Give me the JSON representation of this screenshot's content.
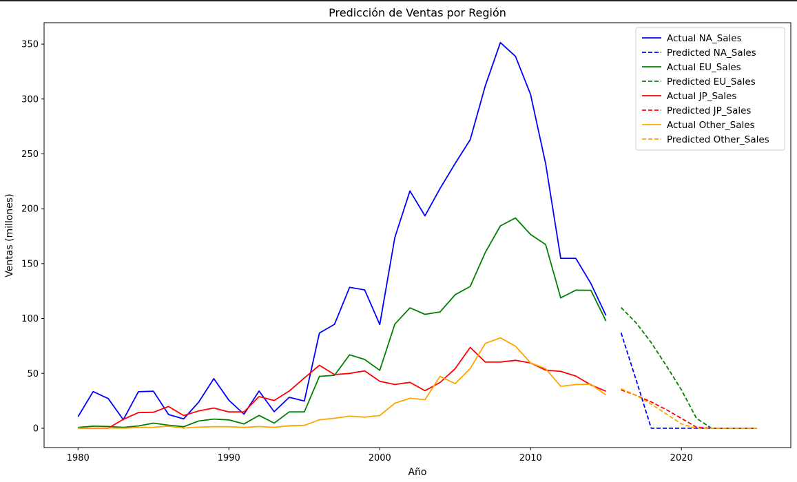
{
  "chart_data": {
    "type": "line",
    "title": "Predicción de Ventas por Región",
    "xlabel": "Año",
    "ylabel": "Ventas (millones)",
    "xlim": [
      1977.75,
      2027.25
    ],
    "ylim": [
      -17.6,
      369.5
    ],
    "xticks": [
      1980,
      1990,
      2000,
      2010,
      2020
    ],
    "yticks": [
      0,
      50,
      100,
      150,
      200,
      250,
      300,
      350
    ],
    "grid": false,
    "legend_position": "top-right",
    "series": [
      {
        "name": "Actual NA_Sales",
        "color": "#0000ff",
        "dashed": false,
        "x": [
          1980,
          1981,
          1982,
          1983,
          1984,
          1985,
          1986,
          1987,
          1988,
          1989,
          1990,
          1991,
          1992,
          1993,
          1994,
          1995,
          1996,
          1997,
          1998,
          1999,
          2000,
          2001,
          2002,
          2003,
          2004,
          2005,
          2006,
          2007,
          2008,
          2009,
          2010,
          2011,
          2012,
          2013,
          2014,
          2015
        ],
        "y": [
          10.6,
          33.4,
          27.1,
          7.8,
          33.3,
          33.7,
          12.5,
          8.5,
          23.9,
          45.2,
          25.5,
          12.8,
          33.9,
          15.1,
          28.2,
          24.8,
          86.8,
          94.7,
          128.4,
          126.1,
          94.5,
          173.8,
          216.2,
          193.6,
          218.4,
          241.2,
          262.9,
          312.0,
          351.4,
          338.9,
          304.2,
          241.1,
          154.9,
          154.8,
          131.9,
          102.8
        ]
      },
      {
        "name": "Predicted NA_Sales",
        "color": "#0000ff",
        "dashed": true,
        "x": [
          2016,
          2017,
          2018,
          2019,
          2020,
          2021,
          2022,
          2023,
          2024,
          2025
        ],
        "y": [
          87,
          44,
          0,
          0,
          0,
          0,
          0,
          0,
          0,
          0
        ]
      },
      {
        "name": "Actual EU_Sales",
        "color": "#008000",
        "dashed": false,
        "x": [
          1980,
          1981,
          1982,
          1983,
          1984,
          1985,
          1986,
          1987,
          1988,
          1989,
          1990,
          1991,
          1992,
          1993,
          1994,
          1995,
          1996,
          1997,
          1998,
          1999,
          2000,
          2001,
          2002,
          2003,
          2004,
          2005,
          2006,
          2007,
          2008,
          2009,
          2010,
          2011,
          2012,
          2013,
          2014,
          2015
        ],
        "y": [
          0.7,
          1.9,
          1.6,
          0.8,
          2.1,
          4.7,
          2.8,
          1.4,
          6.6,
          8.4,
          7.6,
          3.9,
          11.7,
          4.7,
          14.9,
          14.9,
          47.3,
          48.3,
          66.9,
          62.7,
          52.8,
          94.9,
          109.7,
          103.8,
          106.0,
          121.6,
          129.2,
          160.2,
          184.4,
          191.6,
          176.6,
          167.4,
          118.8,
          125.8,
          125.7,
          97.7
        ]
      },
      {
        "name": "Predicted EU_Sales",
        "color": "#008000",
        "dashed": true,
        "x": [
          2016,
          2017,
          2018,
          2019,
          2020,
          2021,
          2022,
          2023,
          2024,
          2025
        ],
        "y": [
          110,
          96,
          78,
          57,
          35,
          9,
          0,
          0,
          0,
          0
        ]
      },
      {
        "name": "Actual JP_Sales",
        "color": "#ff0000",
        "dashed": false,
        "x": [
          1980,
          1981,
          1982,
          1983,
          1984,
          1985,
          1986,
          1987,
          1988,
          1989,
          1990,
          1991,
          1992,
          1993,
          1994,
          1995,
          1996,
          1997,
          1998,
          1999,
          2000,
          2001,
          2002,
          2003,
          2004,
          2005,
          2006,
          2007,
          2008,
          2009,
          2010,
          2011,
          2012,
          2013,
          2014,
          2015
        ],
        "y": [
          0,
          0,
          0,
          8.1,
          14.3,
          14.6,
          19.8,
          11.6,
          15.8,
          18.4,
          14.9,
          14.9,
          28.9,
          25.3,
          33.9,
          45.8,
          57.4,
          48.9,
          50.0,
          52.3,
          42.8,
          39.9,
          41.8,
          34.2,
          41.7,
          54.3,
          73.7,
          60.3,
          60.3,
          61.9,
          59.5,
          53.0,
          51.8,
          47.6,
          39.5,
          33.7
        ]
      },
      {
        "name": "Predicted JP_Sales",
        "color": "#ff0000",
        "dashed": true,
        "x": [
          2016,
          2017,
          2018,
          2019,
          2020,
          2021,
          2022,
          2023,
          2024,
          2025
        ],
        "y": [
          35,
          30,
          24,
          17,
          9,
          1,
          0,
          0,
          0,
          0
        ]
      },
      {
        "name": "Actual Other_Sales",
        "color": "#ffa500",
        "dashed": false,
        "x": [
          1980,
          1981,
          1982,
          1983,
          1984,
          1985,
          1986,
          1987,
          1988,
          1989,
          1990,
          1991,
          1992,
          1993,
          1994,
          1995,
          1996,
          1997,
          1998,
          1999,
          2000,
          2001,
          2002,
          2003,
          2004,
          2005,
          2006,
          2007,
          2008,
          2009,
          2010,
          2011,
          2012,
          2013,
          2014,
          2015
        ],
        "y": [
          0.1,
          0.3,
          0.3,
          0.1,
          0.7,
          0.9,
          1.9,
          0.2,
          1.0,
          1.5,
          1.4,
          0.7,
          1.6,
          0.8,
          2.3,
          2.6,
          7.7,
          9.1,
          11.0,
          10.1,
          11.6,
          22.8,
          27.3,
          26.0,
          47.3,
          40.6,
          54.4,
          77.3,
          82.4,
          74.8,
          59.6,
          54.3,
          38.2,
          39.9,
          40.1,
          30.3
        ]
      },
      {
        "name": "Predicted Other_Sales",
        "color": "#ffa500",
        "dashed": true,
        "x": [
          2016,
          2017,
          2018,
          2019,
          2020,
          2021,
          2022,
          2023,
          2024,
          2025
        ],
        "y": [
          36,
          30,
          22,
          13,
          4,
          0,
          0,
          0,
          0,
          0
        ]
      }
    ]
  }
}
